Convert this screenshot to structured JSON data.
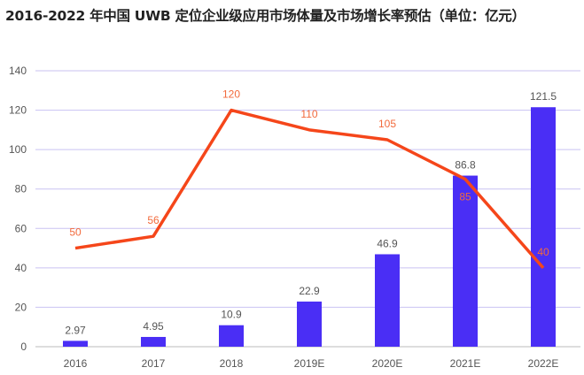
{
  "title": "2016-2022 年中国 UWB 定位企业级应用市场体量及市场增长率预估（单位：亿元）",
  "chart_data": {
    "type": "bar+line",
    "title": "2016-2022 年中国 UWB 定位企业级应用市场体量及市场增长率预估（单位：亿元）",
    "categories": [
      "2016",
      "2017",
      "2018",
      "2019E",
      "2020E",
      "2021E",
      "2022E"
    ],
    "series": [
      {
        "type": "bar",
        "values": [
          2.97,
          4.95,
          10.9,
          22.9,
          46.9,
          86.8,
          121.5
        ],
        "color": "#4a2ef5"
      },
      {
        "type": "line",
        "values": [
          50,
          56,
          120,
          110,
          105,
          85,
          40
        ],
        "color": "#f5461a"
      }
    ],
    "ylim": [
      0,
      140
    ],
    "yticks": [
      0,
      20,
      40,
      60,
      80,
      100,
      120,
      140
    ],
    "grid": true,
    "legend": "none"
  }
}
